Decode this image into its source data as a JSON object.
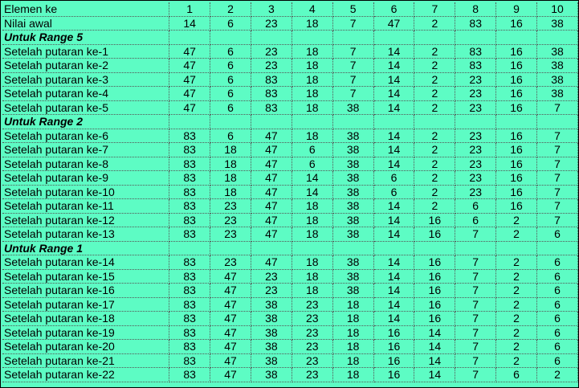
{
  "header": {
    "label": "Elemen ke",
    "columns": [
      "1",
      "2",
      "3",
      "4",
      "5",
      "6",
      "7",
      "8",
      "9",
      "10"
    ]
  },
  "initial": {
    "label": "Nilai awal",
    "values": [
      "14",
      "6",
      "23",
      "18",
      "7",
      "47",
      "2",
      "83",
      "16",
      "38"
    ]
  },
  "sections": [
    {
      "title": "Untuk Range 5",
      "rows": [
        {
          "label": "Setelah putaran ke-1",
          "values": [
            "47",
            "6",
            "23",
            "18",
            "7",
            "14",
            "2",
            "83",
            "16",
            "38"
          ]
        },
        {
          "label": "Setelah putaran ke-2",
          "values": [
            "47",
            "6",
            "23",
            "18",
            "7",
            "14",
            "2",
            "83",
            "16",
            "38"
          ]
        },
        {
          "label": "Setelah putaran ke-3",
          "values": [
            "47",
            "6",
            "83",
            "18",
            "7",
            "14",
            "2",
            "23",
            "16",
            "38"
          ]
        },
        {
          "label": "Setelah putaran ke-4",
          "values": [
            "47",
            "6",
            "83",
            "18",
            "7",
            "14",
            "2",
            "23",
            "16",
            "38"
          ]
        },
        {
          "label": "Setelah putaran ke-5",
          "values": [
            "47",
            "6",
            "83",
            "18",
            "38",
            "14",
            "2",
            "23",
            "16",
            "7"
          ]
        }
      ]
    },
    {
      "title": "Untuk Range 2",
      "rows": [
        {
          "label": "Setelah putaran ke-6",
          "values": [
            "83",
            "6",
            "47",
            "18",
            "38",
            "14",
            "2",
            "23",
            "16",
            "7"
          ]
        },
        {
          "label": "Setelah putaran ke-7",
          "values": [
            "83",
            "18",
            "47",
            "6",
            "38",
            "14",
            "2",
            "23",
            "16",
            "7"
          ]
        },
        {
          "label": "Setelah putaran ke-8",
          "values": [
            "83",
            "18",
            "47",
            "6",
            "38",
            "14",
            "2",
            "23",
            "16",
            "7"
          ]
        },
        {
          "label": "Setelah putaran ke-9",
          "values": [
            "83",
            "18",
            "47",
            "14",
            "38",
            "6",
            "2",
            "23",
            "16",
            "7"
          ]
        },
        {
          "label": "Setelah putaran ke-10",
          "values": [
            "83",
            "18",
            "47",
            "14",
            "38",
            "6",
            "2",
            "23",
            "16",
            "7"
          ]
        },
        {
          "label": "Setelah putaran ke-11",
          "values": [
            "83",
            "23",
            "47",
            "18",
            "38",
            "14",
            "2",
            "6",
            "16",
            "7"
          ]
        },
        {
          "label": "Setelah putaran ke-12",
          "values": [
            "83",
            "23",
            "47",
            "18",
            "38",
            "14",
            "16",
            "6",
            "2",
            "7"
          ]
        },
        {
          "label": "Setelah putaran ke-13",
          "values": [
            "83",
            "23",
            "47",
            "18",
            "38",
            "14",
            "16",
            "7",
            "2",
            "6"
          ]
        }
      ]
    },
    {
      "title": "Untuk Range 1",
      "rows": [
        {
          "label": "Setelah putaran ke-14",
          "values": [
            "83",
            "23",
            "47",
            "18",
            "38",
            "14",
            "16",
            "7",
            "2",
            "6"
          ]
        },
        {
          "label": "Setelah putaran ke-15",
          "values": [
            "83",
            "47",
            "23",
            "18",
            "38",
            "14",
            "16",
            "7",
            "2",
            "6"
          ]
        },
        {
          "label": "Setelah putaran ke-16",
          "values": [
            "83",
            "47",
            "23",
            "18",
            "38",
            "14",
            "16",
            "7",
            "2",
            "6"
          ]
        },
        {
          "label": "Setelah putaran ke-17",
          "values": [
            "83",
            "47",
            "38",
            "23",
            "18",
            "14",
            "16",
            "7",
            "2",
            "6"
          ]
        },
        {
          "label": "Setelah putaran ke-18",
          "values": [
            "83",
            "47",
            "38",
            "23",
            "18",
            "14",
            "16",
            "7",
            "2",
            "6"
          ]
        },
        {
          "label": "Setelah putaran ke-19",
          "values": [
            "83",
            "47",
            "38",
            "23",
            "18",
            "16",
            "14",
            "7",
            "2",
            "6"
          ]
        },
        {
          "label": "Setelah putaran ke-20",
          "values": [
            "83",
            "47",
            "38",
            "23",
            "18",
            "16",
            "14",
            "7",
            "2",
            "6"
          ]
        },
        {
          "label": "Setelah putaran ke-21",
          "values": [
            "83",
            "47",
            "38",
            "23",
            "18",
            "16",
            "14",
            "7",
            "2",
            "6"
          ]
        },
        {
          "label": "Setelah putaran ke-22",
          "values": [
            "83",
            "47",
            "38",
            "23",
            "18",
            "16",
            "14",
            "7",
            "6",
            "2"
          ]
        }
      ]
    }
  ],
  "colors": {
    "background": "#5dfcc4",
    "gridline": "#555555"
  }
}
